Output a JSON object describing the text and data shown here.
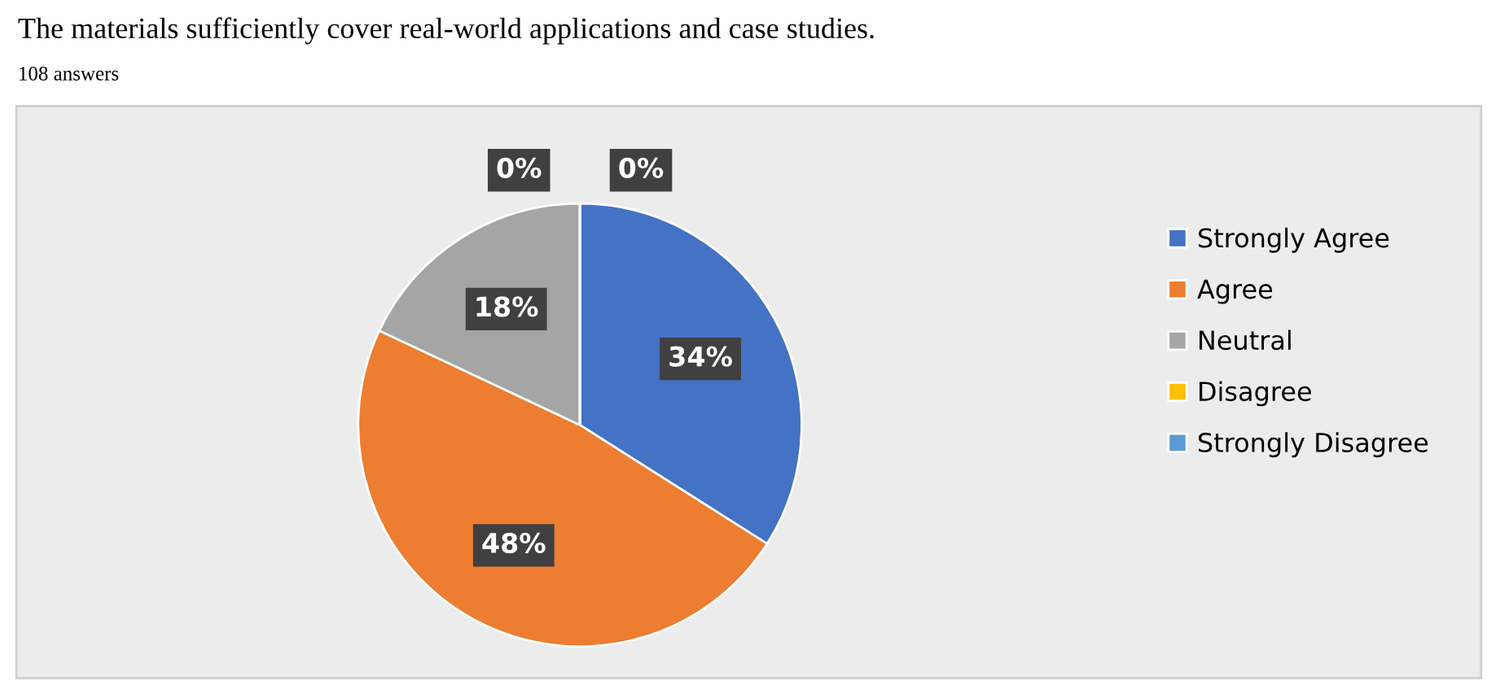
{
  "chart_data": {
    "type": "pie",
    "title": "The materials sufficiently cover real-world applications and case studies.",
    "subtitle": "108 answers",
    "categories": [
      "Strongly Agree",
      "Agree",
      "Neutral",
      "Disagree",
      "Strongly Disagree"
    ],
    "values": [
      34,
      48,
      18,
      0,
      0
    ],
    "colors": [
      "#4472c4",
      "#ed7d31",
      "#a5a5a5",
      "#ffc000",
      "#5b9bd5"
    ],
    "value_labels": [
      "34%",
      "48%",
      "18%",
      "0%",
      "0%"
    ],
    "legend": "right"
  }
}
